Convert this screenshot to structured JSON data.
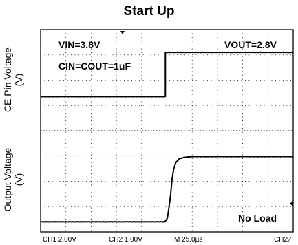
{
  "chart_data": {
    "type": "line",
    "title": "Start Up",
    "ylabels": {
      "upper_line1": "CE Pin Voltage",
      "upper_line2": "(V)",
      "lower_line1": "Output Voltage",
      "lower_line2": "(V)"
    },
    "annotations": {
      "vin": "VIN=3.8V",
      "cin": "CIN=COUT=1uF",
      "vout": "VOUT=2.8V",
      "load": "No Load"
    },
    "footer": {
      "ch1": "CH1  2.00V",
      "ch2": "CH2  1.00V",
      "timebase": "M 25.0µs",
      "ch2_trigger": "CH2 ∕"
    },
    "grid": {
      "x_divisions": 10,
      "y_divisions": 8,
      "dotted": true
    },
    "series": [
      {
        "name": "CE",
        "x_div": [
          0,
          4.94,
          4.94,
          10
        ],
        "y_div": [
          5.35,
          5.35,
          7.1,
          7.1
        ]
      },
      {
        "name": "VOUT",
        "x_div": [
          0,
          4.92,
          5.02,
          5.08,
          5.15,
          5.2,
          5.27,
          5.36,
          5.5,
          5.7,
          6.0,
          10
        ],
        "y_div": [
          0.4,
          0.4,
          0.55,
          0.95,
          1.5,
          2.05,
          2.5,
          2.75,
          2.9,
          2.95,
          2.98,
          2.98
        ]
      }
    ]
  }
}
